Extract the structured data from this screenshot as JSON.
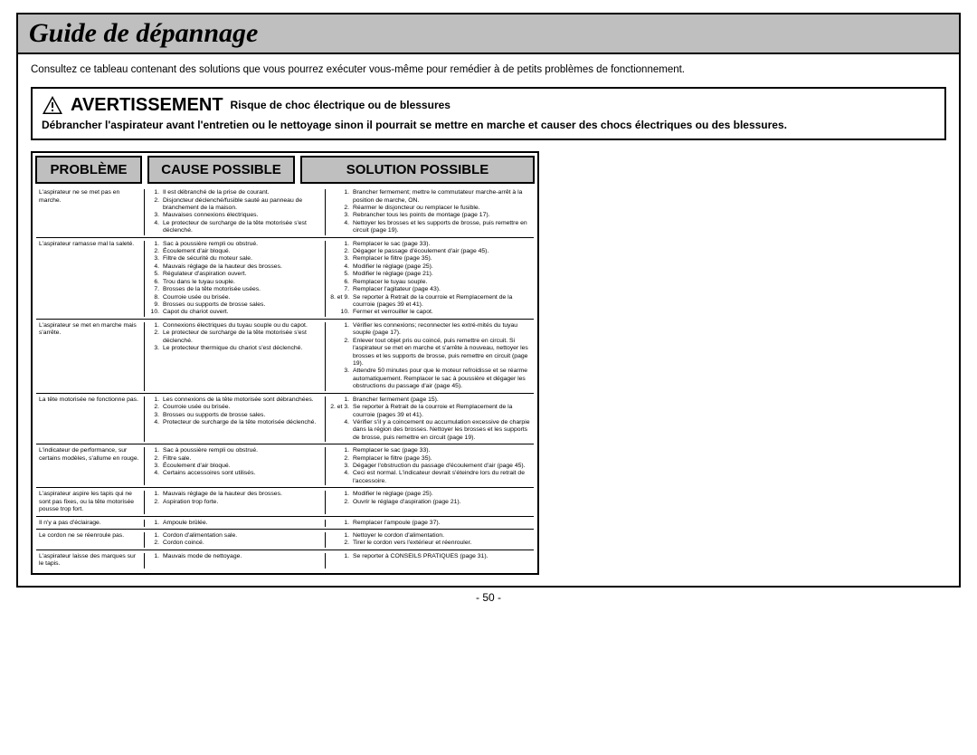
{
  "title": "Guide de dépannage",
  "intro": "Consultez ce tableau contenant des solutions que vous pourrez exécuter vous-même pour remédier à de petits problèmes de fonctionnement.",
  "warning": {
    "title": "AVERTISSEMENT",
    "subtitle": "Risque de choc électrique ou de blessures",
    "body": "Débrancher l'aspirateur avant l'entretien ou le nettoyage sinon il pourrait se mettre en marche et causer des chocs électriques ou des blessures."
  },
  "headers": {
    "c1": "PROBLÈME",
    "c2": "CAUSE POSSIBLE",
    "c3": "SOLUTION POSSIBLE"
  },
  "rows": [
    {
      "problem": "L'aspirateur ne se met pas en marche.",
      "causes": [
        {
          "n": "1.",
          "t": "Il est débranché de la prise de courant."
        },
        {
          "n": "2.",
          "t": "Disjoncteur déclenché/fusible sauté au panneau de branchement de la maison."
        },
        {
          "n": "3.",
          "t": "Mauvaises connexions électriques."
        },
        {
          "n": "4.",
          "t": "Le protecteur de surcharge de la tête motorisée s'est déclenché."
        }
      ],
      "solutions": [
        {
          "n": "1.",
          "t": "Brancher fermement; mettre le commutateur marche-arrêt à la position de marche, ON."
        },
        {
          "n": "2.",
          "t": "Réarmer le disjoncteur ou remplacer le fusible."
        },
        {
          "n": "3.",
          "t": "Rebrancher tous les points de montage (page 17)."
        },
        {
          "n": "4.",
          "t": "Nettoyer les brosses et les supports de brosse, puis remettre en circuit (page 19)."
        }
      ]
    },
    {
      "problem": "L'aspirateur ramasse mal la saleté.",
      "causes": [
        {
          "n": "1.",
          "t": "Sac à poussière rempli ou obstrué."
        },
        {
          "n": "2.",
          "t": "Écoulement d'air bloqué."
        },
        {
          "n": "3.",
          "t": "Filtre de sécurité du moteur sale."
        },
        {
          "n": "4.",
          "t": "Mauvais réglage de la hauteur des brosses."
        },
        {
          "n": "5.",
          "t": "Régulateur d'aspiration ouvert."
        },
        {
          "n": "6.",
          "t": "Trou dans le tuyau souple."
        },
        {
          "n": "7.",
          "t": "Brosses de la tête motorisée usées."
        },
        {
          "n": "8.",
          "t": "Courroie usée ou brisée."
        },
        {
          "n": "9.",
          "t": "Brosses ou supports de brosse sales."
        },
        {
          "n": "10.",
          "t": "Capot du chariot ouvert."
        }
      ],
      "solutions": [
        {
          "n": "1.",
          "t": "Remplacer le sac (page 33)."
        },
        {
          "n": "2.",
          "t": "Dégager le passage d'écoulement d'air (page 45)."
        },
        {
          "n": "3.",
          "t": "Remplacer le filtre (page 35)."
        },
        {
          "n": "4.",
          "t": "Modifier le réglage (page 25)."
        },
        {
          "n": "5.",
          "t": "Modifier le réglage (page 21)."
        },
        {
          "n": "6.",
          "t": "Remplacer le tuyau souple."
        },
        {
          "n": "7.",
          "t": "Remplacer l'agitateur (page 43)."
        },
        {
          "n": "8. et 9.",
          "t": "Se reporter à Retrait de la courroie et Remplacement de la courroie (pages 39 et 41)."
        },
        {
          "n": "10.",
          "t": "Fermer et verrouiller le capot."
        }
      ]
    },
    {
      "problem": "L'aspirateur se met en marche mais s'arrête.",
      "causes": [
        {
          "n": "1.",
          "t": "Connexions électriques du tuyau souple ou du capot."
        },
        {
          "n": "2.",
          "t": "Le protecteur de surcharge de la tête motorisée s'est déclenché."
        },
        {
          "n": "3.",
          "t": "Le protecteur thermique du chariot s'est déclenché."
        }
      ],
      "solutions": [
        {
          "n": "1.",
          "t": "Vérifier les connexions; reconnecter les extré-mités du tuyau souple (page 17)."
        },
        {
          "n": "2.",
          "t": "Enlever tout objet pris ou coincé, puis remettre en circuit. Si l'aspirateur se met en marche et s'arrête à nouveau, nettoyer les brosses et les supports de brosse, puis remettre en circuit (page 19)."
        },
        {
          "n": "3.",
          "t": "Attendre 50 minutes pour que le moteur refroidisse et se réarme automatiquement. Remplacer le sac à poussière et dégager les obstructions du passage d'air (page 45)."
        }
      ]
    },
    {
      "problem": "La tête motorisée ne fonctionne pas.",
      "causes": [
        {
          "n": "1.",
          "t": "Les connexions de la tête motorisée sont débranchées."
        },
        {
          "n": "2.",
          "t": "Courroie usée ou brisée."
        },
        {
          "n": "3.",
          "t": "Brosses ou supports de brosse sales."
        },
        {
          "n": "4.",
          "t": "Protecteur de surcharge de la tête motorisée déclenché."
        }
      ],
      "solutions": [
        {
          "n": "1.",
          "t": "Brancher fermement (page 15)."
        },
        {
          "n": "2. et 3.",
          "t": "Se reporter à Retrait de la courroie et Remplacement de la courroie (pages 39 et 41)."
        },
        {
          "n": "4.",
          "t": "Vérifier s'il y a coincement ou accumulation excessive de charpie dans la région des brosses. Nettoyer les brosses et les supports de brosse, puis remettre en circuit (page 19)."
        }
      ]
    },
    {
      "problem": "L'indicateur de performance, sur certains modèles, s'allume en rouge.",
      "causes": [
        {
          "n": "1.",
          "t": "Sac à poussière rempli ou obstrué."
        },
        {
          "n": "2.",
          "t": "Filtre sale."
        },
        {
          "n": "3.",
          "t": "Écoulement d'air bloqué."
        },
        {
          "n": "4.",
          "t": "Certains accessoires sont utilisés."
        }
      ],
      "solutions": [
        {
          "n": "1.",
          "t": "Remplacer le sac (page 33)."
        },
        {
          "n": "2.",
          "t": "Remplacer le filtre (page 35)."
        },
        {
          "n": "3.",
          "t": "Dégager l'obstruction du passage d'écoulement d'air (page 45)."
        },
        {
          "n": "4.",
          "t": "Ceci est normal. L'indicateur devrait s'éteindre lors du retrait de l'accessoire."
        }
      ]
    },
    {
      "problem": "L'aspirateur aspire les tapis qui ne sont pas fixes, ou la tête motorisée pousse trop fort.",
      "causes": [
        {
          "n": "1.",
          "t": "Mauvais réglage de la hauteur des brosses."
        },
        {
          "n": "2.",
          "t": "Aspiration trop forte."
        }
      ],
      "solutions": [
        {
          "n": "1.",
          "t": "Modifier le réglage (page 25)."
        },
        {
          "n": "2.",
          "t": "Ouvrir le réglage d'aspiration (page 21)."
        }
      ]
    },
    {
      "problem": "Il n'y a pas d'éclairage.",
      "causes": [
        {
          "n": "1.",
          "t": "Ampoule brûlée."
        }
      ],
      "solutions": [
        {
          "n": "1.",
          "t": "Remplacer l'ampoule (page 37)."
        }
      ]
    },
    {
      "problem": "Le cordon ne se réenroule pas.",
      "causes": [
        {
          "n": "1.",
          "t": "Cordon d'alimentation sale."
        },
        {
          "n": "2.",
          "t": "Cordon coincé."
        }
      ],
      "solutions": [
        {
          "n": "1.",
          "t": "Nettoyer le cordon d'alimentation."
        },
        {
          "n": "2.",
          "t": "Tirer le cordon vers l'extérieur et réenrouler."
        }
      ]
    },
    {
      "problem": "L'aspirateur laisse des marques sur le tapis.",
      "causes": [
        {
          "n": "1.",
          "t": "Mauvais mode de nettoyage."
        }
      ],
      "solutions": [
        {
          "n": "1.",
          "t": "Se reporter à CONSEILS PRATIQUES (page 31)."
        }
      ]
    }
  ],
  "page_number": "- 50 -",
  "colors": {
    "header_bg": "#bfbfbf",
    "text": "#000000",
    "bg": "#ffffff"
  }
}
